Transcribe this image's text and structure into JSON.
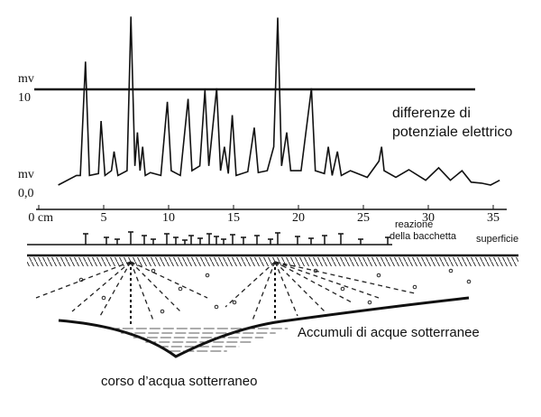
{
  "chart_data": {
    "type": "line",
    "annotation": [
      "differenze di",
      "potenziale elettrico"
    ],
    "y_unit": "mv",
    "xlim": [
      0,
      35
    ],
    "xticks": [
      {
        "value": 0,
        "label": "0 cm"
      },
      5,
      10,
      15,
      20,
      25,
      30,
      35
    ],
    "ylim": [
      0,
      10
    ],
    "yticks": [
      {
        "value": 0,
        "label": "0,0"
      },
      10
    ],
    "color": "#111111",
    "x": [
      1.5,
      2.9,
      3.2,
      3.6,
      3.9,
      4.6,
      4.8,
      5.1,
      5.6,
      5.8,
      6.1,
      6.8,
      7.1,
      7.4,
      7.6,
      7.8,
      8,
      8.2,
      8.6,
      9.4,
      9.9,
      10.2,
      10.9,
      11.5,
      11.8,
      12.4,
      12.8,
      13.1,
      13.7,
      14,
      14.3,
      14.6,
      14.9,
      15.2,
      16.1,
      16.6,
      16.9,
      17.6,
      18.1,
      18.4,
      18.7,
      19.1,
      19.4,
      20.2,
      21,
      21.3,
      22,
      22.3,
      22.6,
      23,
      23.3,
      24,
      25.3,
      26.2,
      26.4,
      26.6,
      27.5,
      28.5,
      29.8,
      30.8,
      31.7,
      32.6,
      33.3,
      34.1,
      34.8,
      35.5
    ],
    "values": [
      0,
      1,
      1,
      12.9,
      1,
      1.2,
      6.7,
      1,
      1.5,
      3.5,
      1,
      1.5,
      17.6,
      2,
      5.5,
      1.5,
      4,
      1,
      1.3,
      1,
      8.7,
      1.5,
      1,
      9,
      1.5,
      2,
      9.9,
      2,
      10.1,
      1.5,
      4,
      1.2,
      7.3,
      1,
      1.4,
      6,
      1.3,
      1.5,
      4,
      17.5,
      2,
      5.5,
      1.5,
      1.5,
      10.1,
      1.5,
      1.2,
      4,
      1,
      3.5,
      1,
      1.5,
      0.8,
      2.5,
      4,
      1.5,
      0.8,
      1.6,
      0.5,
      1.8,
      0.5,
      1.5,
      0.3,
      0.2,
      0,
      0.5
    ]
  },
  "diagram": {
    "rod_reaction": [
      "reazione",
      "della bacchetta"
    ],
    "surface": "superficie",
    "aquifer": "Accumuli di acque sotterranee",
    "stream": "corso d’acqua sotterraneo"
  }
}
